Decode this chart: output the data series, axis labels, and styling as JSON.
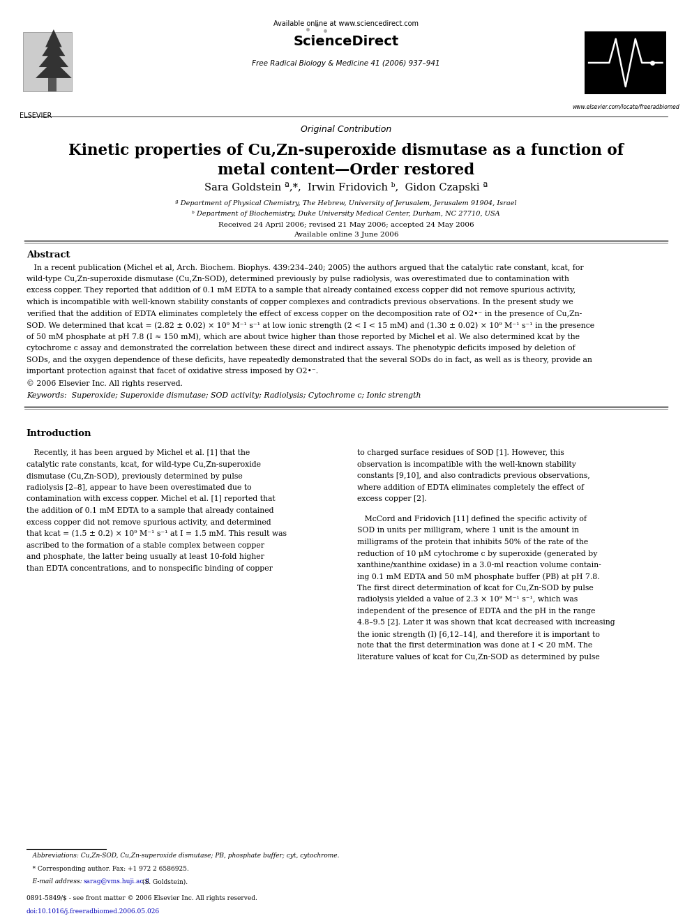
{
  "bg_color": "#ffffff",
  "page_width": 9.92,
  "page_height": 13.23,
  "available_online": "Available online at www.sciencedirect.com",
  "sciencedirect": "ScienceDirect",
  "journal": "Free Radical Biology & Medicine 41 (2006) 937–941",
  "website": "www.elsevier.com/locate/freeradbiomed",
  "elsevier_text": "ELSEVIER",
  "contribution_type": "Original Contribution",
  "title_line1": "Kinetic properties of Cu,Zn-superoxide dismutase as a function of",
  "title_line2": "metal content—Order restored",
  "authors": "Sara Goldstein ª,*,  Irwin Fridovich ᵇ,  Gidon Czapski ª",
  "affil_a": "ª Department of Physical Chemistry, The Hebrew, University of Jerusalem, Jerusalem 91904, Israel",
  "affil_b": "ᵇ Department of Biochemistry, Duke University Medical Center, Durham, NC 27710, USA",
  "received": "Received 24 April 2006; revised 21 May 2006; accepted 24 May 2006",
  "available_date": "Available online 3 June 2006",
  "abstract_title": "Abstract",
  "abstract_lines": [
    "   In a recent publication (Michel et al, Arch. Biochem. Biophys. 439:234–240; 2005) the authors argued that the catalytic rate constant, kcat, for",
    "wild-type Cu,Zn-superoxide dismutase (Cu,Zn-SOD), determined previously by pulse radiolysis, was overestimated due to contamination with",
    "excess copper. They reported that addition of 0.1 mM EDTA to a sample that already contained excess copper did not remove spurious activity,",
    "which is incompatible with well-known stability constants of copper complexes and contradicts previous observations. In the present study we",
    "verified that the addition of EDTA eliminates completely the effect of excess copper on the decomposition rate of O2•⁻ in the presence of Cu,Zn-",
    "SOD. We determined that kcat = (2.82 ± 0.02) × 10⁹ M⁻¹ s⁻¹ at low ionic strength (2 < I < 15 mM) and (1.30 ± 0.02) × 10⁹ M⁻¹ s⁻¹ in the presence",
    "of 50 mM phosphate at pH 7.8 (I ≈ 150 mM), which are about twice higher than those reported by Michel et al. We also determined kcat by the",
    "cytochrome c assay and demonstrated the correlation between these direct and indirect assays. The phenotypic deficits imposed by deletion of",
    "SODs, and the oxygen dependence of these deficits, have repeatedly demonstrated that the several SODs do in fact, as well as is theory, provide an",
    "important protection against that facet of oxidative stress imposed by O2•⁻."
  ],
  "copyright": "© 2006 Elsevier Inc. All rights reserved.",
  "keywords_line": "Keywords:  Superoxide; Superoxide dismutase; SOD activity; Radiolysis; Cytochrome c; Ionic strength",
  "intro_title": "Introduction",
  "col1_lines": [
    "   Recently, it has been argued by Michel et al. [1] that the",
    "catalytic rate constants, kcat, for wild-type Cu,Zn-superoxide",
    "dismutase (Cu,Zn-SOD), previously determined by pulse",
    "radiolysis [2–8], appear to have been overestimated due to",
    "contamination with excess copper. Michel et al. [1] reported that",
    "the addition of 0.1 mM EDTA to a sample that already contained",
    "excess copper did not remove spurious activity, and determined",
    "that kcat = (1.5 ± 0.2) × 10⁹ M⁻¹ s⁻¹ at I = 1.5 mM. This result was",
    "ascribed to the formation of a stable complex between copper",
    "and phosphate, the latter being usually at least 10-fold higher",
    "than EDTA concentrations, and to nonspecific binding of copper"
  ],
  "col2_lines_p1": [
    "to charged surface residues of SOD [1]. However, this",
    "observation is incompatible with the well-known stability",
    "constants [9,10], and also contradicts previous observations,",
    "where addition of EDTA eliminates completely the effect of",
    "excess copper [2]."
  ],
  "col2_lines_p2": [
    "   McCord and Fridovich [11] defined the specific activity of",
    "SOD in units per milligram, where 1 unit is the amount in",
    "milligrams of the protein that inhibits 50% of the rate of the",
    "reduction of 10 μM cytochrome c by superoxide (generated by",
    "xanthine/xanthine oxidase) in a 3.0-ml reaction volume contain-",
    "ing 0.1 mM EDTA and 50 mM phosphate buffer (PB) at pH 7.8.",
    "The first direct determination of kcat for Cu,Zn-SOD by pulse",
    "radiolysis yielded a value of 2.3 × 10⁹ M⁻¹ s⁻¹, which was",
    "independent of the presence of EDTA and the pH in the range",
    "4.8–9.5 [2]. Later it was shown that kcat decreased with increasing",
    "the ionic strength (I) [6,12–14], and therefore it is important to",
    "note that the first determination was done at I < 20 mM. The",
    "literature values of kcat for Cu,Zn-SOD as determined by pulse"
  ],
  "fn_abbrev": "   Abbreviations: Cu,Zn-SOD, Cu,Zn-superoxide dismutase; PB, phosphate buffer; cyt, cytochrome.",
  "fn_corresponding": "   * Corresponding author. Fax: +1 972 2 6586925.",
  "fn_email_label": "   E-mail address: ",
  "fn_email": "sarag@vms.huji.ac.il",
  "fn_email_suffix": " (S. Goldstein).",
  "article_no": "0891-5849/$ - see front matter © 2006 Elsevier Inc. All rights reserved.",
  "doi_text": "doi:10.1016/j.freeradbiomed.2006.05.026"
}
